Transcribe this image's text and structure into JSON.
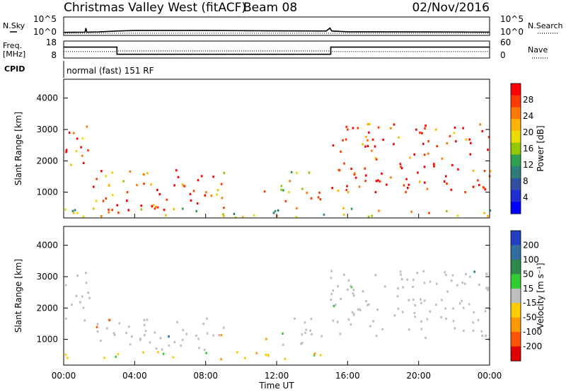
{
  "header": {
    "title": "Christmas Valley West (fitACF)",
    "beam": "Beam 08",
    "date": "02/Nov/2016"
  },
  "strip_labels": {
    "nsky": "N.Sky",
    "nsearch": "N.Search",
    "freq_line1": "Freq.",
    "freq_line2": "[MHz]",
    "nave": "Nave",
    "cpid": "CPID",
    "cpid_value": "normal (fast) 151 RF"
  },
  "noise_axis_ticks": [
    "10^5",
    "10^0"
  ],
  "freq_ticks": [
    "18",
    "8"
  ],
  "nave_ticks": [
    "60",
    "0"
  ],
  "range_ticks": [
    "4000",
    "3000",
    "2000",
    "1000"
  ],
  "time_ticks": [
    "00:00",
    "04:00",
    "08:00",
    "12:00",
    "16:00",
    "20:00",
    "00:00"
  ],
  "xlabel": "Time UT",
  "power_panel": {
    "ylabel": "Slant Range [km]",
    "cbar_label": "Power [dB]"
  },
  "velocity_panel": {
    "ylabel": "Slant Range [km]",
    "cbar_label": "Velocity [m s⁻¹]"
  },
  "power_scale": {
    "ticks": [
      "28",
      "24",
      "20",
      "16",
      "12",
      "8",
      "4"
    ],
    "colors": [
      "#ff0000",
      "#ff3a00",
      "#ff7a00",
      "#ffb400",
      "#e8dc00",
      "#93c800",
      "#2fa050",
      "#2f7d78",
      "#2f50a0",
      "#2030d0",
      "#0000ff"
    ]
  },
  "velocity_scale": {
    "ticks": [
      "200",
      "100",
      "50",
      "15",
      "-15",
      "-50",
      "-100",
      "-200"
    ],
    "colors": [
      "#2040c0",
      "#2e6f9e",
      "#2e8a4a",
      "#33cc33",
      "#bebebe",
      "#ffcc00",
      "#ff9900",
      "#ff5500",
      "#e00000"
    ]
  },
  "chart_data": {
    "type": "heatmap",
    "title": "Christmas Valley West (fitACF)",
    "subtitle": "Beam 08",
    "date": "02/Nov/2016",
    "xlabel": "Time UT",
    "xlim": [
      0,
      24
    ],
    "x_ticks": [
      "00:00",
      "04:00",
      "08:00",
      "12:00",
      "16:00",
      "20:00",
      "00:00"
    ],
    "ylabel": "Slant Range [km]",
    "ylim": [
      180,
      4600
    ],
    "y_ticks": [
      1000,
      2000,
      3000,
      4000
    ],
    "strips": {
      "noise": {
        "labels": [
          "N.Sky",
          "N.Search"
        ],
        "scale": "log",
        "range": [
          "10^0",
          "10^5"
        ],
        "sky_level_log10": [
          [
            0,
            0.45
          ],
          [
            1.2,
            0.5
          ],
          [
            1.25,
            1.6
          ],
          [
            1.3,
            0.5
          ],
          [
            2.0,
            0.55
          ],
          [
            3.0,
            0.8
          ],
          [
            4.0,
            0.95
          ],
          [
            8.0,
            0.95
          ],
          [
            12.0,
            0.85
          ],
          [
            14.8,
            0.8
          ],
          [
            15.0,
            1.6
          ],
          [
            15.1,
            0.8
          ],
          [
            16.0,
            0.6
          ],
          [
            20.0,
            0.55
          ],
          [
            24.0,
            0.5
          ]
        ]
      },
      "frequency": {
        "label": "Freq. [MHz]",
        "range": [
          8,
          18
        ],
        "nave_range": [
          0,
          60
        ],
        "steps": [
          {
            "from": 0,
            "to": 3.0,
            "mhz": 14.4
          },
          {
            "from": 3.0,
            "to": 15.05,
            "mhz": 10.2
          },
          {
            "from": 15.05,
            "to": 24,
            "mhz": 14.4
          }
        ],
        "nave_steps": [
          {
            "from": 0,
            "to": 3.0,
            "value": 23
          },
          {
            "from": 3.0,
            "to": 15.05,
            "value": 25
          },
          {
            "from": 15.05,
            "to": 24,
            "value": 23
          }
        ]
      },
      "cpid": "normal (fast) 151 RF"
    },
    "panels": [
      {
        "name": "Power",
        "units": "dB",
        "color_ticks": [
          28,
          24,
          20,
          16,
          12,
          8,
          4
        ],
        "regions": [
          {
            "t": [
              0.0,
              1.5
            ],
            "r": [
              1600,
              3200
            ],
            "level": 0.85
          },
          {
            "t": [
              1.6,
              9.0
            ],
            "r": [
              400,
              1700
            ],
            "level": 0.8
          },
          {
            "t": [
              2.0,
              7.0
            ],
            "r": [
              400,
              600
            ],
            "level": 0.95
          },
          {
            "t": [
              11.0,
              12.3
            ],
            "r": [
              1000,
              1300
            ],
            "level": 0.7
          },
          {
            "t": [
              12.2,
              14.5
            ],
            "r": [
              600,
              1700
            ],
            "level": 0.65
          },
          {
            "t": [
              15.0,
              24.0
            ],
            "r": [
              1000,
              3200
            ],
            "level": 0.9
          },
          {
            "t": [
              0.0,
              24.0
            ],
            "r": [
              200,
              500
            ],
            "level": 0.55
          }
        ]
      },
      {
        "name": "Velocity",
        "units": "m s-1",
        "color_ticks": [
          200,
          100,
          50,
          15,
          -15,
          -50,
          -100,
          -200
        ],
        "regions": [
          {
            "t": [
              0.0,
              1.5
            ],
            "r": [
              1600,
              3200
            ],
            "velocity": 0
          },
          {
            "t": [
              1.6,
              9.0
            ],
            "r": [
              600,
              1700
            ],
            "velocity": 0
          },
          {
            "t": [
              12.2,
              14.5
            ],
            "r": [
              800,
              1700
            ],
            "velocity": 0
          },
          {
            "t": [
              15.0,
              24.0
            ],
            "r": [
              1000,
              3200
            ],
            "velocity": 0
          },
          {
            "t": [
              11.0,
              12.3
            ],
            "r": [
              1000,
              1300
            ],
            "velocity": -80
          },
          {
            "t": [
              0.0,
              15.0
            ],
            "r": [
              350,
              600
            ],
            "velocity": -80
          }
        ]
      }
    ]
  }
}
